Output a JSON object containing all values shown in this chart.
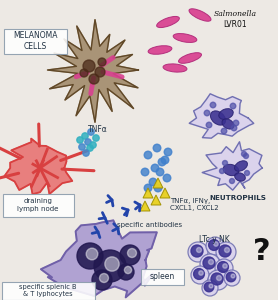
{
  "bg_color": "#ede9e4",
  "melanoma_label": "MELANOMA\nCELLS",
  "salmonella_label": "Salmonella\nLVR01",
  "tnfa_label": "TNFα",
  "lymph_label": "draining\nlymph node",
  "cytokine_label": "TNFα, IFNγ,\nCXCL1, CXCL2",
  "neutrophils_label": "NEUTROPHILS",
  "antibodies_label": "specific antibodies",
  "splenic_label": "specific splenic B\n& T lyphocytes",
  "spleen_label": "spleen",
  "ltc_label": "LTc y NK",
  "question_mark": "?",
  "pink_color": "#d94090",
  "cell_outline": "#7070b0",
  "cell_fill": "#d8d0ee",
  "nucleus_dark": "#3a3090",
  "nucleus_mid": "#5050a8",
  "blue_dot": "#4080cc",
  "teal_dot": "#30a0b0",
  "red_vessel": "#d84040",
  "red_vessel_fill": "#e87070",
  "yellow_tri": "#e8d020",
  "spleen_fill": "#a898d0",
  "spleen_outline": "#7060a8",
  "melanoma_tan": "#a08868",
  "melanoma_dark": "#604828",
  "antibody_blue": "#2244aa",
  "label_color": "#223344",
  "box_edge": "#8899aa"
}
